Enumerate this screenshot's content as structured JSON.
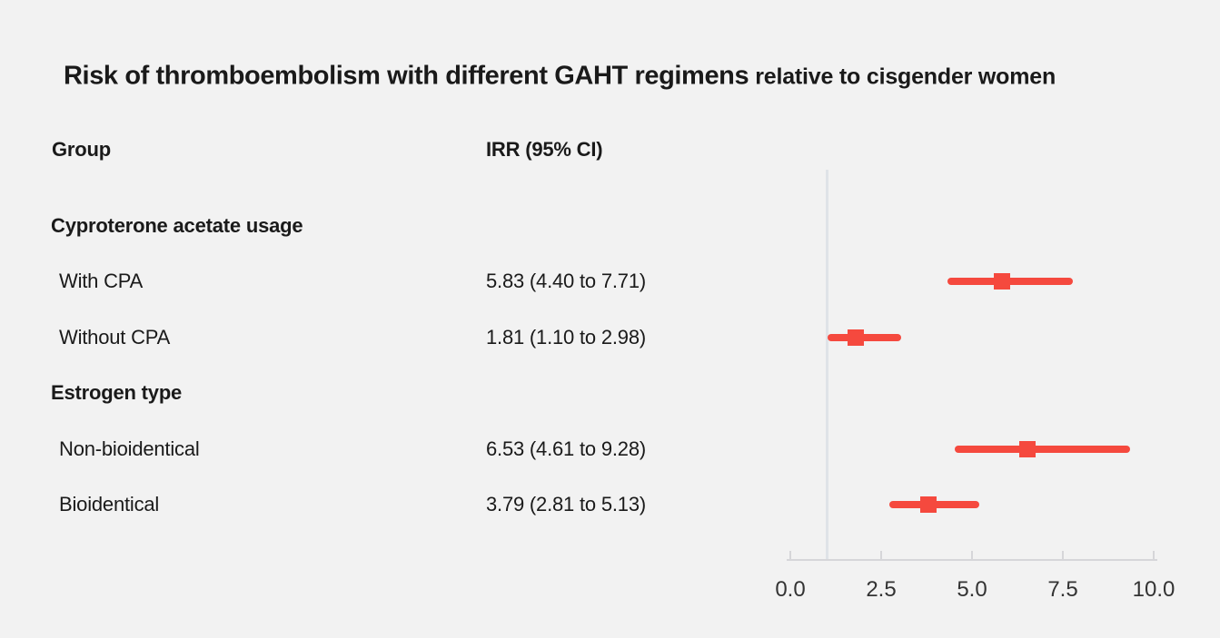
{
  "title": {
    "main": "Risk of thromboembolism with different GAHT regimens",
    "suffix": "relative to cisgender women"
  },
  "columns": {
    "group": "Group",
    "irr": "IRR (95% CI)"
  },
  "chart_data": {
    "type": "forest",
    "title": "Risk of thromboembolism with different GAHT regimens relative to cisgender women",
    "xlabel": "",
    "ylabel": "",
    "x_axis": {
      "tick_labels": [
        "0.0",
        "2.5",
        "5.0",
        "7.5",
        "10.0"
      ],
      "tick_values": [
        0,
        2.5,
        5,
        7.5,
        10
      ],
      "range": [
        0,
        10.1
      ],
      "reference_line": 1.0
    },
    "groups": [
      {
        "label": "Cyproterone acetate usage",
        "items": [
          {
            "label": "With CPA",
            "irr": 5.83,
            "ci_low": 4.4,
            "ci_high": 7.71,
            "irr_text": "5.83 (4.40 to 7.71)"
          },
          {
            "label": "Without CPA",
            "irr": 1.81,
            "ci_low": 1.1,
            "ci_high": 2.98,
            "irr_text": "1.81 (1.10 to 2.98)"
          }
        ]
      },
      {
        "label": "Estrogen type",
        "items": [
          {
            "label": "Non-bioidentical",
            "irr": 6.53,
            "ci_low": 4.61,
            "ci_high": 9.28,
            "irr_text": "6.53 (4.61 to 9.28)"
          },
          {
            "label": "Bioidentical",
            "irr": 3.79,
            "ci_low": 2.81,
            "ci_high": 5.13,
            "irr_text": "3.79 (2.81 to 5.13)"
          }
        ]
      }
    ],
    "colors": {
      "marker": "#f5493e",
      "reference_line": "#dfe3e8",
      "axis": "#d6d6d9",
      "text": "#1a1a1a",
      "tick_text": "#333333",
      "background": "#f2f2f2"
    },
    "grid": "off",
    "legend_position": "none"
  }
}
